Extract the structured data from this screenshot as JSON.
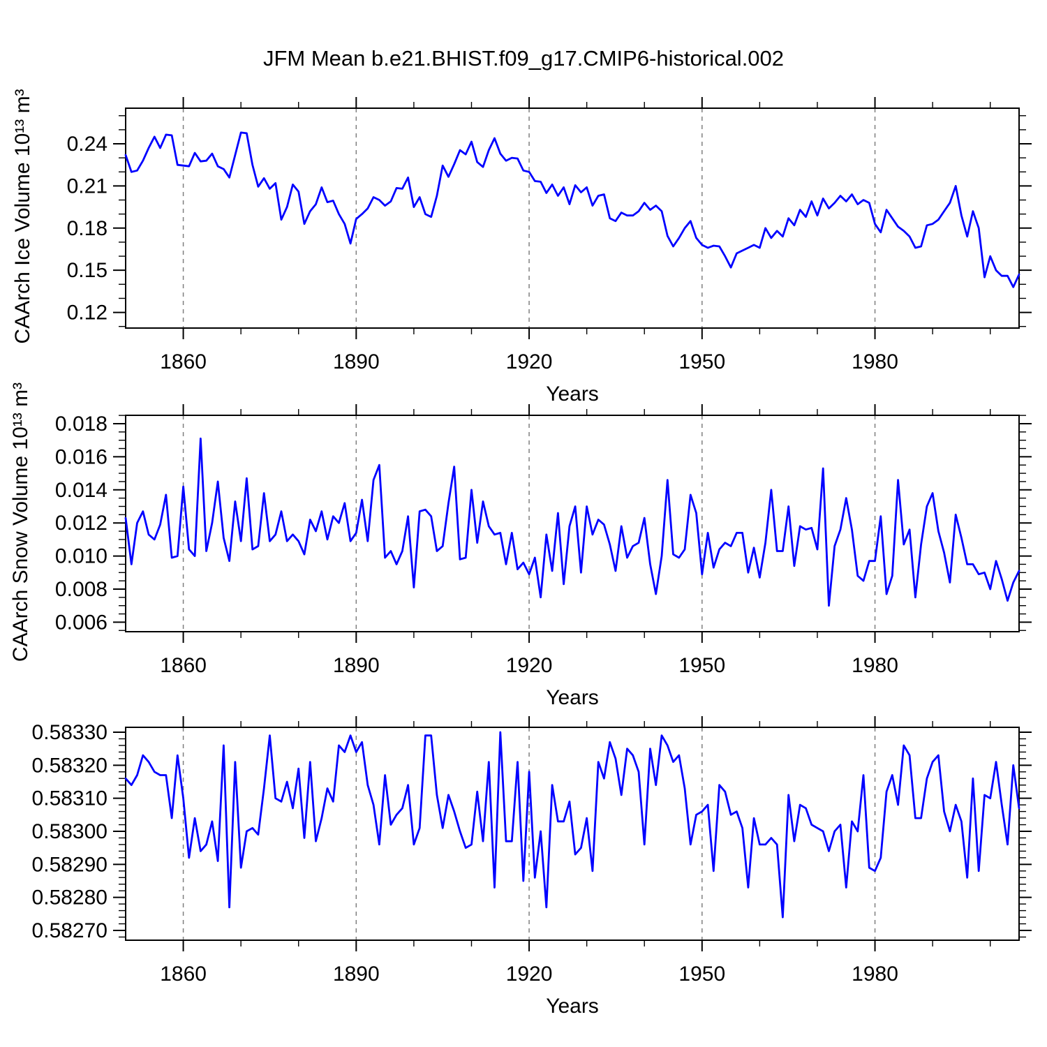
{
  "chart_data": {
    "type": "line",
    "title": "JFM Mean b.e21.BHIST.f09_g17.CMIP6-historical.002",
    "x_start_year": 1850,
    "x_end_year": 2005,
    "x_major_ticks": [
      1860,
      1890,
      1920,
      1950,
      1980
    ],
    "x_minor_step_years": 10,
    "grid": "dashed vertical lines at x major ticks",
    "legend_position": "none",
    "line_color": "#0000ff",
    "grid_color": "#7f7f7f",
    "panels": [
      {
        "ylabel": "CAArch Ice Volume 10¹³ m³",
        "xlabel": "Years",
        "ylim": [
          0.10886,
          0.26534
        ],
        "ytick_values": [
          0.24,
          0.21,
          0.18,
          0.15,
          0.12
        ],
        "ytick_labels": [
          "0.24",
          "0.21",
          "0.18",
          "0.15",
          "0.12"
        ],
        "y_minor_step": 0.01,
        "values": [
          0.232,
          0.22,
          0.221,
          0.228,
          0.237,
          0.245,
          0.237,
          0.2465,
          0.246,
          0.225,
          0.2245,
          0.224,
          0.2335,
          0.2275,
          0.228,
          0.233,
          0.224,
          0.222,
          0.216,
          0.232,
          0.248,
          0.2475,
          0.225,
          0.2095,
          0.2155,
          0.208,
          0.212,
          0.186,
          0.195,
          0.211,
          0.206,
          0.183,
          0.192,
          0.197,
          0.209,
          0.1985,
          0.1995,
          0.19,
          0.183,
          0.169,
          0.1865,
          0.19,
          0.194,
          0.202,
          0.2,
          0.196,
          0.199,
          0.2085,
          0.208,
          0.216,
          0.195,
          0.202,
          0.19,
          0.188,
          0.203,
          0.2245,
          0.2165,
          0.2255,
          0.2355,
          0.2325,
          0.2415,
          0.227,
          0.2235,
          0.2355,
          0.244,
          0.233,
          0.228,
          0.23,
          0.2295,
          0.221,
          0.22,
          0.2135,
          0.213,
          0.205,
          0.211,
          0.203,
          0.209,
          0.197,
          0.2105,
          0.2055,
          0.209,
          0.196,
          0.203,
          0.204,
          0.187,
          0.185,
          0.191,
          0.189,
          0.189,
          0.192,
          0.198,
          0.193,
          0.196,
          0.192,
          0.1745,
          0.167,
          0.173,
          0.18,
          0.185,
          0.173,
          0.168,
          0.166,
          0.1675,
          0.167,
          0.16,
          0.152,
          0.162,
          0.164,
          0.166,
          0.168,
          0.166,
          0.18,
          0.173,
          0.178,
          0.174,
          0.187,
          0.182,
          0.193,
          0.188,
          0.199,
          0.189,
          0.201,
          0.194,
          0.198,
          0.203,
          0.199,
          0.204,
          0.197,
          0.2,
          0.198,
          0.183,
          0.177,
          0.193,
          0.187,
          0.181,
          0.178,
          0.174,
          0.166,
          0.167,
          0.182,
          0.183,
          0.186,
          0.192,
          0.198,
          0.21,
          0.189,
          0.174,
          0.192,
          0.18,
          0.145,
          0.16,
          0.15,
          0.146,
          0.146,
          0.138,
          0.147
        ]
      },
      {
        "ylabel": "CAArch Snow Volume 10¹³ m³",
        "xlabel": "Years",
        "ylim": [
          0.005426,
          0.018506
        ],
        "ytick_values": [
          0.018,
          0.016,
          0.014,
          0.012,
          0.01,
          0.008,
          0.006
        ],
        "ytick_labels": [
          "0.018",
          "0.016",
          "0.014",
          "0.012",
          "0.010",
          "0.008",
          "0.006"
        ],
        "y_minor_step": 0.0005,
        "values": [
          0.0123,
          0.0095,
          0.012,
          0.0127,
          0.0113,
          0.011,
          0.0119,
          0.0137,
          0.0099,
          0.01,
          0.0142,
          0.0104,
          0.01,
          0.0171,
          0.0103,
          0.012,
          0.0145,
          0.0111,
          0.0097,
          0.0133,
          0.0109,
          0.0147,
          0.0104,
          0.0106,
          0.0138,
          0.0109,
          0.0113,
          0.0127,
          0.0109,
          0.0113,
          0.0109,
          0.0101,
          0.0122,
          0.0115,
          0.0127,
          0.011,
          0.0124,
          0.012,
          0.0132,
          0.0109,
          0.0114,
          0.0134,
          0.0109,
          0.0146,
          0.0155,
          0.0099,
          0.0103,
          0.0095,
          0.0103,
          0.0124,
          0.0081,
          0.0127,
          0.0128,
          0.0124,
          0.0103,
          0.0106,
          0.0132,
          0.0154,
          0.0098,
          0.0099,
          0.014,
          0.0108,
          0.0133,
          0.0118,
          0.0113,
          0.0114,
          0.0095,
          0.0114,
          0.0092,
          0.0096,
          0.0089,
          0.0099,
          0.0075,
          0.0113,
          0.0091,
          0.0126,
          0.0083,
          0.0118,
          0.013,
          0.009,
          0.013,
          0.0113,
          0.0122,
          0.0119,
          0.0107,
          0.0091,
          0.0118,
          0.0099,
          0.0106,
          0.0108,
          0.0123,
          0.0095,
          0.0077,
          0.01,
          0.0146,
          0.0101,
          0.0099,
          0.0104,
          0.0137,
          0.0126,
          0.0089,
          0.0114,
          0.0093,
          0.0104,
          0.0108,
          0.0106,
          0.0114,
          0.0114,
          0.009,
          0.0105,
          0.0087,
          0.0108,
          0.014,
          0.0103,
          0.0103,
          0.013,
          0.0094,
          0.0118,
          0.0116,
          0.0117,
          0.0104,
          0.0153,
          0.007,
          0.0106,
          0.0116,
          0.0135,
          0.0116,
          0.0088,
          0.0085,
          0.0097,
          0.0097,
          0.0124,
          0.0077,
          0.0088,
          0.0146,
          0.0107,
          0.0116,
          0.0075,
          0.0107,
          0.013,
          0.0138,
          0.0115,
          0.0102,
          0.0084,
          0.0125,
          0.0111,
          0.0095,
          0.0095,
          0.0089,
          0.009,
          0.008,
          0.0097,
          0.0086,
          0.0073,
          0.0084,
          0.0091
        ]
      },
      {
        "ylabel": "",
        "xlabel": "Years",
        "ylim": [
          0.5826704,
          0.5833148
        ],
        "ytick_values": [
          0.5833,
          0.5832,
          0.5831,
          0.583,
          0.5829,
          0.5828,
          0.5827
        ],
        "ytick_labels": [
          "0.58330",
          "0.58320",
          "0.58310",
          "0.58300",
          "0.58290",
          "0.58280",
          "0.58270"
        ],
        "y_minor_step": 2e-05,
        "values": [
          0.58316,
          0.58314,
          0.58317,
          0.58323,
          0.58321,
          0.58318,
          0.58317,
          0.58317,
          0.58304,
          0.58323,
          0.5831,
          0.58292,
          0.58304,
          0.58294,
          0.58296,
          0.58303,
          0.58291,
          0.58326,
          0.58277,
          0.58321,
          0.58289,
          0.583,
          0.58301,
          0.58299,
          0.58313,
          0.58329,
          0.5831,
          0.58309,
          0.58315,
          0.58307,
          0.58319,
          0.58298,
          0.58321,
          0.58297,
          0.58304,
          0.58313,
          0.58309,
          0.58326,
          0.58324,
          0.58329,
          0.58324,
          0.58327,
          0.58314,
          0.58308,
          0.58296,
          0.58317,
          0.58302,
          0.58305,
          0.58307,
          0.58314,
          0.58296,
          0.58301,
          0.58329,
          0.58329,
          0.58311,
          0.58301,
          0.58311,
          0.58306,
          0.583,
          0.58295,
          0.58296,
          0.58312,
          0.58297,
          0.58321,
          0.58283,
          0.5833,
          0.58297,
          0.58297,
          0.58321,
          0.58285,
          0.58318,
          0.58286,
          0.583,
          0.58277,
          0.58314,
          0.58303,
          0.58303,
          0.58309,
          0.58293,
          0.58295,
          0.58304,
          0.58288,
          0.58321,
          0.58316,
          0.58327,
          0.58322,
          0.58311,
          0.58325,
          0.58323,
          0.58318,
          0.58296,
          0.58325,
          0.58314,
          0.58329,
          0.58326,
          0.58321,
          0.58323,
          0.58313,
          0.58296,
          0.58305,
          0.58306,
          0.58308,
          0.58288,
          0.58314,
          0.58312,
          0.58305,
          0.58306,
          0.58301,
          0.58283,
          0.58304,
          0.58296,
          0.58296,
          0.58298,
          0.58296,
          0.58274,
          0.58311,
          0.58297,
          0.58308,
          0.58307,
          0.58302,
          0.58301,
          0.583,
          0.58294,
          0.583,
          0.58302,
          0.58283,
          0.58303,
          0.583,
          0.58317,
          0.58289,
          0.58288,
          0.58292,
          0.58312,
          0.58317,
          0.58308,
          0.58326,
          0.58323,
          0.58304,
          0.58304,
          0.58316,
          0.58321,
          0.58323,
          0.58306,
          0.583,
          0.58308,
          0.58303,
          0.58286,
          0.58316,
          0.58288,
          0.58311,
          0.5831,
          0.58321,
          0.58308,
          0.58296,
          0.5832,
          0.58307
        ]
      }
    ]
  }
}
